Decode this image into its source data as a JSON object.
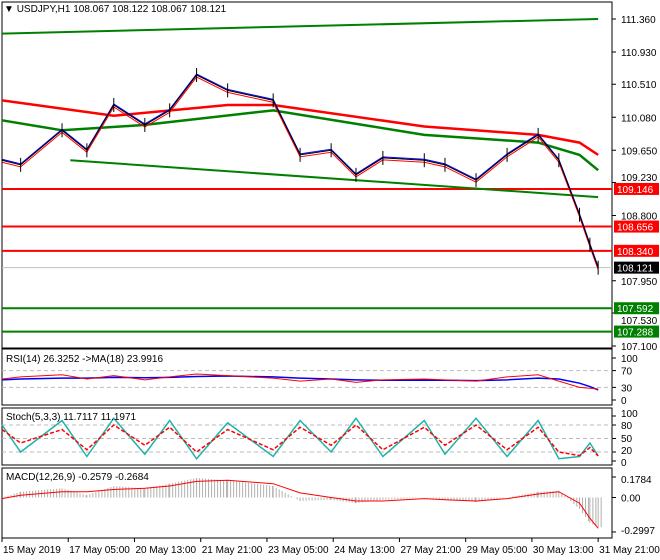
{
  "header": {
    "arrow": "▼",
    "symbol": "USDJPY,H1",
    "ohlc": "108.067 108.122 108.067 108.121"
  },
  "colors": {
    "bull_line": "#008000",
    "resist": "#ff0000",
    "current": "#000000",
    "ma_fast": "#0000ff",
    "ma_slow": "#ff0000"
  },
  "chart_data": [
    {
      "type": "line",
      "panel": "price",
      "y_ticks": [
        "111.360",
        "110.930",
        "110.510",
        "110.080",
        "109.650",
        "109.230",
        "108.800",
        "107.950",
        "107.530",
        "107.100"
      ],
      "ylim": [
        107.1,
        111.36
      ],
      "x_ticks": [
        "15 May 2019",
        "17 May 05:00",
        "20 May 13:00",
        "21 May 21:00",
        "23 May 05:00",
        "24 May 13:00",
        "27 May 21:00",
        "29 May 05:00",
        "30 May 13:00",
        "31 May 21:00"
      ],
      "close": [
        [
          "2019-05-15 21:00",
          109.52
        ],
        [
          "2019-05-16 06:00",
          109.46
        ],
        [
          "2019-05-17 02:00",
          109.91
        ],
        [
          "2019-05-17 14:00",
          109.65
        ],
        [
          "2019-05-20 03:00",
          110.24
        ],
        [
          "2019-05-20 18:00",
          109.98
        ],
        [
          "2019-05-21 06:00",
          110.17
        ],
        [
          "2019-05-21 19:00",
          110.63
        ],
        [
          "2019-05-22 10:00",
          110.43
        ],
        [
          "2019-05-23 08:00",
          110.3
        ],
        [
          "2019-05-23 21:00",
          109.59
        ],
        [
          "2019-05-24 12:00",
          109.65
        ],
        [
          "2019-05-27 00:00",
          109.33
        ],
        [
          "2019-05-27 13:00",
          109.55
        ],
        [
          "2019-05-28 09:00",
          109.52
        ],
        [
          "2019-05-28 19:00",
          109.46
        ],
        [
          "2019-05-29 10:00",
          109.26
        ],
        [
          "2019-05-30 01:00",
          109.59
        ],
        [
          "2019-05-30 16:00",
          109.85
        ],
        [
          "2019-05-31 02:00",
          109.52
        ],
        [
          "2019-05-31 12:00",
          108.81
        ],
        [
          "2019-05-31 17:00",
          108.42
        ],
        [
          "2019-05-31 21:00",
          108.12
        ]
      ],
      "ma_red": [
        [
          "2019-05-15 21:00",
          110.3
        ],
        [
          "2019-05-20 03:00",
          110.1
        ],
        [
          "2019-05-22 10:00",
          110.24
        ],
        [
          "2019-05-23 08:00",
          110.24
        ],
        [
          "2019-05-28 09:00",
          109.96
        ],
        [
          "2019-05-30 16:00",
          109.85
        ],
        [
          "2019-05-31 12:00",
          109.75
        ],
        [
          "2019-05-31 21:00",
          109.59
        ]
      ],
      "ma_green": [
        [
          "2019-05-15 21:00",
          110.04
        ],
        [
          "2019-05-17 02:00",
          109.91
        ],
        [
          "2019-05-20 18:00",
          109.98
        ],
        [
          "2019-05-23 08:00",
          110.17
        ],
        [
          "2019-05-28 09:00",
          109.85
        ],
        [
          "2019-05-30 16:00",
          109.75
        ],
        [
          "2019-05-31 12:00",
          109.59
        ],
        [
          "2019-05-31 21:00",
          109.39
        ]
      ],
      "trend_lines": [
        {
          "from": [
            "2019-05-15 21:00",
            111.17
          ],
          "to": [
            "2019-05-31 21:00",
            111.36
          ],
          "color": "#008000"
        },
        {
          "from": [
            "2019-05-17 06:00",
            109.52
          ],
          "to": [
            "2019-05-31 21:00",
            109.04
          ],
          "color": "#008000"
        }
      ],
      "h_lines": [
        {
          "value": "109.146",
          "color": "#ff0000"
        },
        {
          "value": "108.656",
          "color": "#ff0000"
        },
        {
          "value": "108.340",
          "color": "#ff0000"
        },
        {
          "value": "107.592",
          "color": "#008000"
        },
        {
          "value": "107.288",
          "color": "#008000"
        }
      ],
      "current": {
        "value": "108.121",
        "color": "#000000"
      }
    },
    {
      "type": "line",
      "panel": "rsi",
      "label": "RSI(14) 26.3252  ->MA(18) 23.9916",
      "y_ticks": [
        "100",
        "70",
        "30",
        "0"
      ],
      "ylim": [
        0,
        100
      ],
      "rsi": [
        50,
        55,
        60,
        50,
        58,
        48,
        55,
        62,
        58,
        52,
        45,
        50,
        42,
        48,
        50,
        48,
        45,
        55,
        60,
        45,
        30,
        28,
        26.3
      ],
      "ma": [
        48,
        50,
        52,
        52,
        54,
        53,
        54,
        56,
        57,
        55,
        52,
        50,
        48,
        47,
        47,
        47,
        46,
        48,
        52,
        50,
        40,
        32,
        24
      ]
    },
    {
      "type": "line",
      "panel": "stoch",
      "label": "Stoch(5,3,3) 11.7117 11.1971",
      "y_ticks": [
        "100",
        "80",
        "50",
        "20",
        "0"
      ],
      "ylim": [
        0,
        100
      ],
      "main": [
        80,
        20,
        90,
        10,
        95,
        15,
        90,
        5,
        85,
        10,
        90,
        20,
        95,
        10,
        90,
        15,
        95,
        10,
        90,
        5,
        10,
        40,
        11.7
      ],
      "signal": [
        70,
        40,
        70,
        25,
        80,
        35,
        75,
        20,
        70,
        25,
        75,
        35,
        80,
        25,
        75,
        35,
        80,
        25,
        75,
        20,
        12,
        30,
        11.2
      ]
    },
    {
      "type": "bar",
      "panel": "macd",
      "label": "MACD(12,26,9) -0.2579 -0.2684",
      "y_ticks": [
        "0.1784",
        "0.00",
        "-0.2997"
      ],
      "ylim": [
        -0.2997,
        0.1784
      ],
      "hist": [
        0,
        0.05,
        0.08,
        0.02,
        0.1,
        0.08,
        0.12,
        0.17,
        0.15,
        0.1,
        -0.03,
        -0.02,
        -0.05,
        -0.02,
        0.0,
        -0.02,
        -0.04,
        0.0,
        0.05,
        0.06,
        -0.1,
        -0.22,
        -0.258
      ],
      "signal": [
        -0.01,
        0.02,
        0.05,
        0.05,
        0.07,
        0.08,
        0.1,
        0.14,
        0.15,
        0.12,
        0.04,
        0.0,
        -0.03,
        -0.03,
        -0.01,
        -0.02,
        -0.03,
        -0.01,
        0.03,
        0.05,
        -0.05,
        -0.18,
        -0.268
      ]
    }
  ]
}
